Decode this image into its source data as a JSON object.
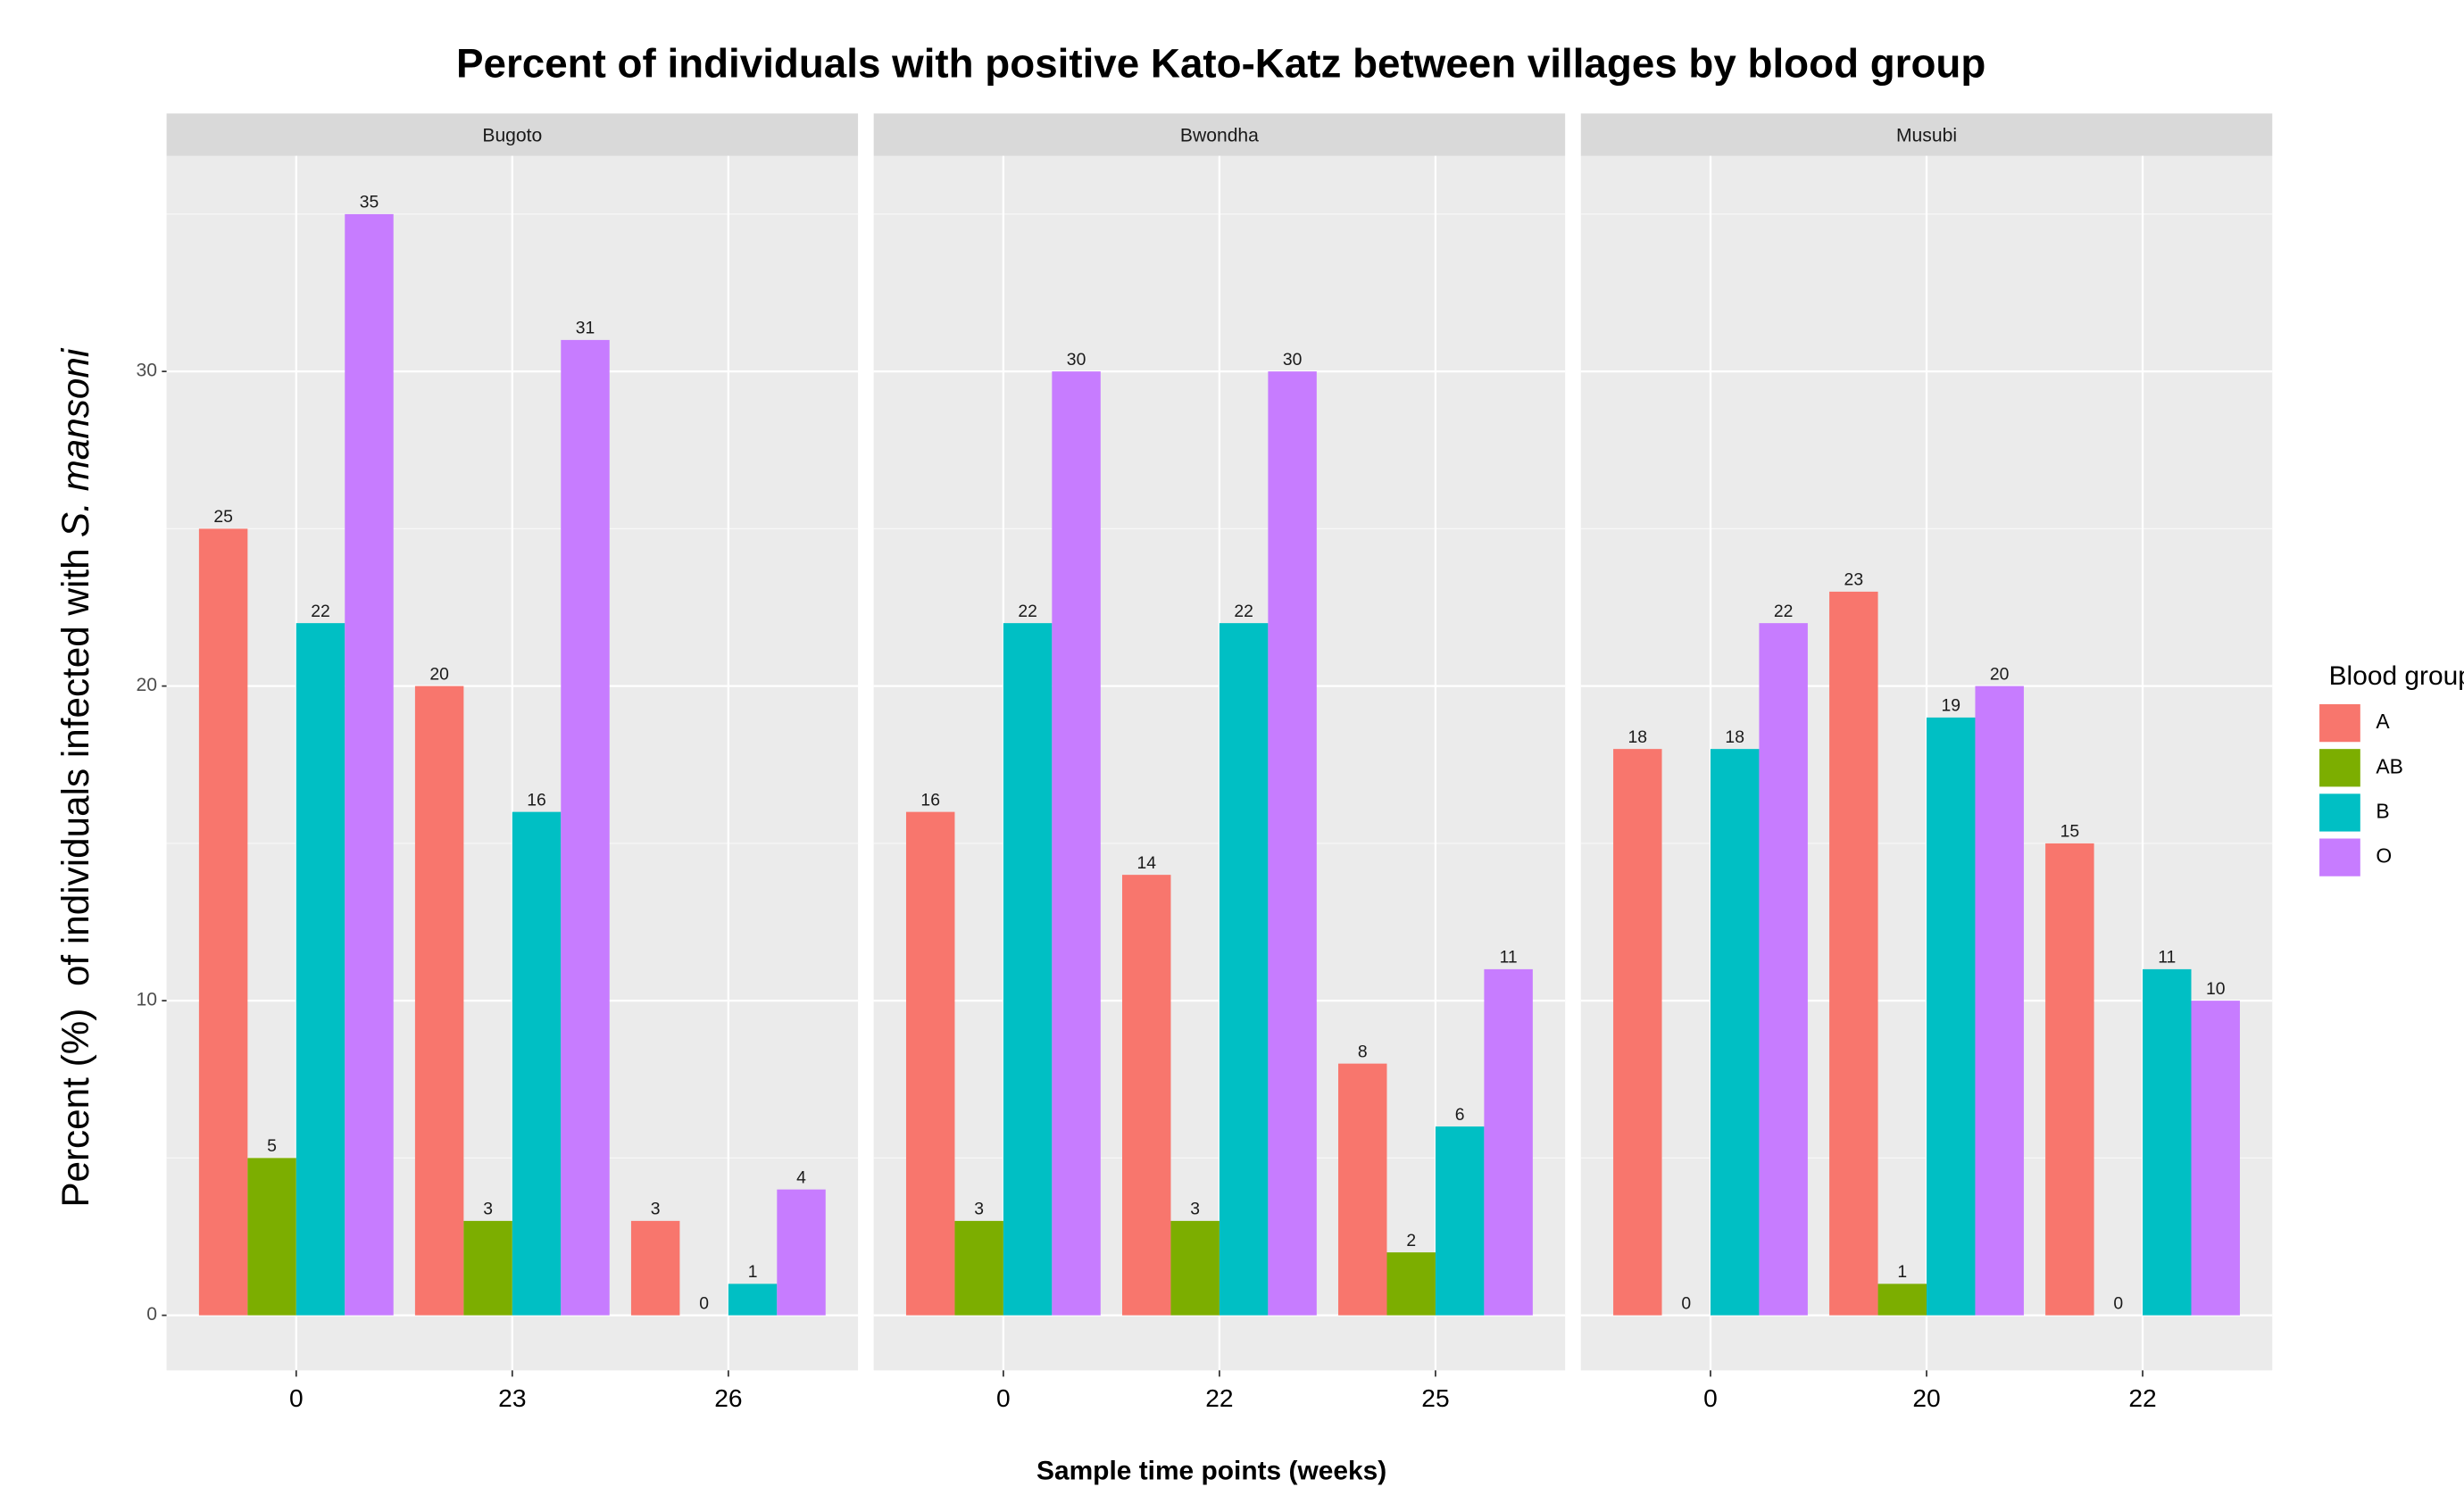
{
  "chart_data": {
    "type": "bar",
    "title": "Percent of individuals with positive Kato-Katz between villages by blood group",
    "xlabel": "Sample time points (weeks)",
    "ylabel": [
      "Percent (%)",
      "of individuals infected with",
      "S. mansoni"
    ],
    "legend_title": "Blood group",
    "legend": [
      {
        "name": "A",
        "color": "#F8766D"
      },
      {
        "name": "AB",
        "color": "#7CAE00"
      },
      {
        "name": "B",
        "color": "#00BFC4"
      },
      {
        "name": "O",
        "color": "#C77CFF"
      }
    ],
    "ylim": [
      -1.75,
      36.85
    ],
    "yticks": [
      0,
      10,
      20,
      30
    ],
    "grid": true,
    "facets": [
      {
        "title": "Bugoto",
        "categories": [
          "0",
          "23",
          "26"
        ],
        "series": [
          {
            "values": [
              25,
              20,
              3
            ]
          },
          {
            "values": [
              5,
              3,
              0
            ]
          },
          {
            "values": [
              22,
              16,
              1
            ]
          },
          {
            "values": [
              35,
              31,
              4
            ]
          }
        ]
      },
      {
        "title": "Bwondha",
        "categories": [
          "0",
          "22",
          "25"
        ],
        "series": [
          {
            "values": [
              16,
              14,
              8
            ]
          },
          {
            "values": [
              3,
              3,
              2
            ]
          },
          {
            "values": [
              22,
              22,
              6
            ]
          },
          {
            "values": [
              30,
              30,
              11
            ]
          }
        ]
      },
      {
        "title": "Musubi",
        "categories": [
          "0",
          "20",
          "22"
        ],
        "series": [
          {
            "values": [
              18,
              23,
              15
            ]
          },
          {
            "values": [
              0,
              1,
              0
            ]
          },
          {
            "values": [
              18,
              19,
              11
            ]
          },
          {
            "values": [
              22,
              20,
              10
            ]
          }
        ]
      }
    ]
  }
}
